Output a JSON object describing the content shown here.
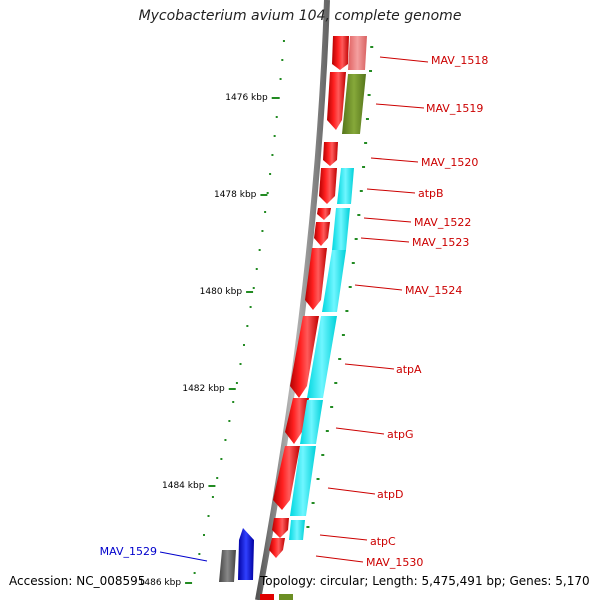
{
  "title": "Mycobacterium avium 104, complete genome",
  "accession": "Accession: NC_008595",
  "topology": "Topology: circular; Length: 5,475,491 bp; Genes: 5,170",
  "colors": {
    "forward_gene": "#ff0000",
    "cds_cyan": "#00ffff",
    "pink_gene": "#f08080",
    "olive_gene": "#6b8e23",
    "gray_gene": "#606060",
    "blue_gene": "#0000ff",
    "label_red": "#cc0000",
    "label_blue": "#0000cc",
    "tick_green": "#228b22"
  },
  "ruler": [
    {
      "label": "1476 kbp"
    },
    {
      "label": "1478 kbp"
    },
    {
      "label": "1480 kbp"
    },
    {
      "label": "1482 kbp"
    },
    {
      "label": "1484 kbp"
    },
    {
      "label": "1486 kbp"
    }
  ],
  "genes": [
    {
      "label": "MAV_1518",
      "color": "red"
    },
    {
      "label": "MAV_1519",
      "color": "red"
    },
    {
      "label": "MAV_1520",
      "color": "red"
    },
    {
      "label": "atpB",
      "color": "red"
    },
    {
      "label": "MAV_1522",
      "color": "red"
    },
    {
      "label": "MAV_1523",
      "color": "red"
    },
    {
      "label": "MAV_1524",
      "color": "red"
    },
    {
      "label": "atpA",
      "color": "red"
    },
    {
      "label": "atpG",
      "color": "red"
    },
    {
      "label": "atpD",
      "color": "red"
    },
    {
      "label": "atpC",
      "color": "red"
    },
    {
      "label": "MAV_1530",
      "color": "red"
    },
    {
      "label": "MAV_1529",
      "color": "blue"
    }
  ]
}
